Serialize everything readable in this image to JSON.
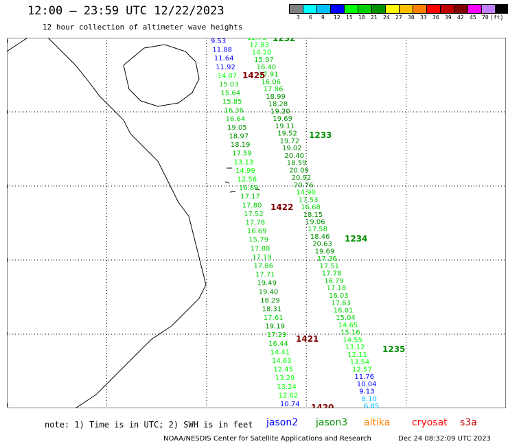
{
  "title": "12:00 — 23:59 UTC 12/22/2023",
  "subtitle": "12 hour collection of altimeter wave heights",
  "colorbar": {
    "labels": [
      "3",
      "6",
      "9",
      "12",
      "15",
      "18",
      "21",
      "24",
      "27",
      "30",
      "33",
      "36",
      "39",
      "42",
      "45",
      "70",
      "(ft)"
    ],
    "colors": [
      "#808080",
      "#00ffff",
      "#00c0ff",
      "#0000ff",
      "#00ff00",
      "#00d000",
      "#009000",
      "#ffff00",
      "#ffc000",
      "#ff8000",
      "#ff0000",
      "#c00000",
      "#800000",
      "#ff00ff",
      "#c080ff",
      "#000000"
    ]
  },
  "axes": {
    "lon_ticks": [
      "105",
      "108",
      "111",
      "114",
      "117",
      "120"
    ],
    "lat_ticks": [
      "20",
      "18",
      "16",
      "14",
      "12",
      "10"
    ]
  },
  "note": "note: 1) Time is in UTC; 2) SWH is in feet",
  "legend": [
    {
      "name": "jason2",
      "color": "#0000ff"
    },
    {
      "name": "jason3",
      "color": "#009000"
    },
    {
      "name": "altika",
      "color": "#ff8000"
    },
    {
      "name": "cryosat",
      "color": "#ff0000"
    },
    {
      "name": "s3a",
      "color": "#c00000"
    }
  ],
  "footer_left": "NOAA/NESDIS Center for Satellite Applications and Research",
  "footer_right": "Dec 24 08:32:09 UTC 2023",
  "tracks": [
    {
      "values": [
        9.53,
        11.88,
        11.64,
        11.92,
        14.07,
        15.03,
        15.64,
        15.85,
        16.36,
        16.64,
        19.05,
        18.97,
        18.19,
        17.59,
        13.13,
        14.99,
        12.56,
        16.89,
        17.17,
        17.8,
        17.52,
        17.78,
        16.69,
        15.79,
        17.88,
        17.19,
        17.86,
        17.71,
        19.49,
        19.4,
        18.29,
        18.31,
        17.61,
        19.19,
        17.29,
        16.44,
        14.41,
        14.63,
        12.45,
        13.29,
        13.24,
        12.62,
        10.74
      ]
    },
    {
      "values": [
        12.73,
        12.83,
        14.2,
        15.97,
        16.4,
        17.91,
        16.06,
        17.86,
        18.99,
        18.28,
        19.2,
        19.69,
        19.11,
        19.52,
        19.72,
        19.02,
        20.4,
        18.59,
        20.09,
        20.92,
        20.76,
        14.9,
        17.53,
        16.68,
        18.15,
        19.06,
        17.58,
        18.46,
        20.63,
        19.69,
        17.36,
        17.51,
        17.78,
        16.79,
        17.18,
        16.03,
        17.63,
        16.01,
        15.04,
        14.65,
        15.16,
        14.55,
        13.12,
        12.11,
        13.54,
        12.57,
        11.76,
        10.04,
        9.13,
        8.1,
        6.85
      ]
    }
  ],
  "pass_labels": [
    {
      "text": "1232",
      "color": "#009000"
    },
    {
      "text": "1425",
      "color": "#800000"
    },
    {
      "text": "1233",
      "color": "#009000"
    },
    {
      "text": "1422",
      "color": "#800000"
    },
    {
      "text": "1234",
      "color": "#009000"
    },
    {
      "text": "1421",
      "color": "#800000"
    },
    {
      "text": "1235",
      "color": "#009000"
    },
    {
      "text": "1420",
      "color": "#800000"
    }
  ]
}
